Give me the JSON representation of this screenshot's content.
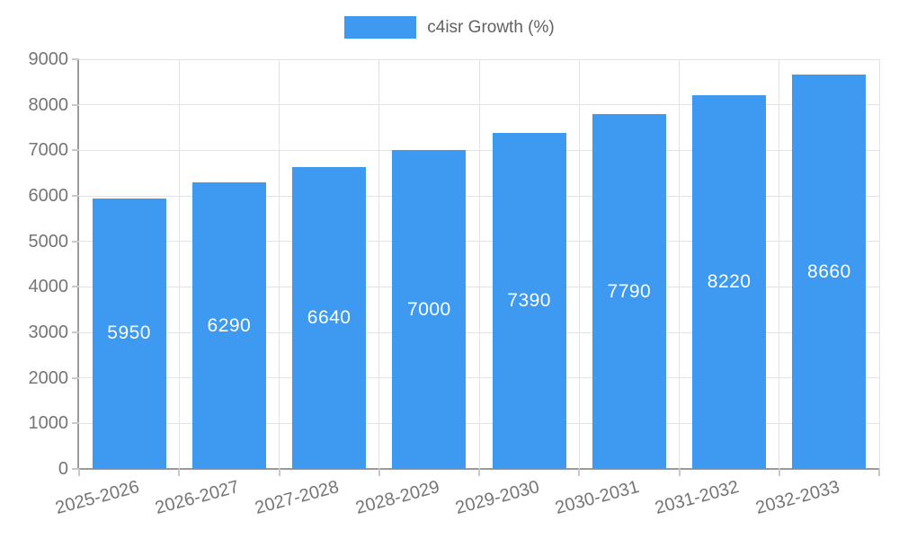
{
  "chart_data": {
    "type": "bar",
    "title": "",
    "legend": "c4isr Growth (%)",
    "legend_position": "top",
    "categories": [
      "2025-2026",
      "2026-2027",
      "2027-2028",
      "2028-2029",
      "2029-2030",
      "2030-2031",
      "2031-2032",
      "2032-2033"
    ],
    "values": [
      5950,
      6290,
      6640,
      7000,
      7390,
      7790,
      8220,
      8660
    ],
    "value_labels": [
      "5950",
      "6290",
      "6640",
      "7000",
      "7390",
      "7790",
      "8220",
      "8660"
    ],
    "yticks": [
      0,
      1000,
      2000,
      3000,
      4000,
      5000,
      6000,
      7000,
      8000,
      9000
    ],
    "ylim": [
      0,
      9000
    ],
    "xlabel": "",
    "ylabel": "",
    "grid": true,
    "colors": {
      "bar": "#3D9AF0",
      "bar_value_label": "#FFFFFF",
      "grid": "#E3E3E3",
      "axis": "#9A9A9A",
      "tick_mark": "#C9C9C9",
      "tick_text": "#757575",
      "legend_text": "#616161"
    }
  }
}
